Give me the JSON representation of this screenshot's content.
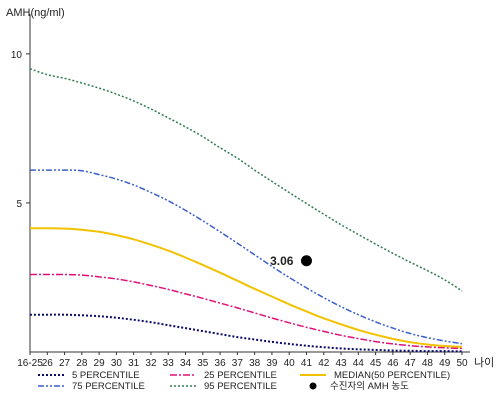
{
  "chart_data": {
    "type": "line",
    "ylabel": "AMH(ng/ml)",
    "xlabel": "나이",
    "ylim": [
      0,
      11
    ],
    "yticks": [
      5,
      10
    ],
    "categories": [
      "16-25",
      "26",
      "27",
      "28",
      "29",
      "30",
      "31",
      "32",
      "33",
      "34",
      "35",
      "36",
      "37",
      "38",
      "39",
      "40",
      "41",
      "42",
      "43",
      "44",
      "45",
      "46",
      "47",
      "48",
      "49",
      "50"
    ],
    "series": [
      {
        "name": "5 PERCENTILE",
        "color": "#0a0a6e",
        "dash": "2,2",
        "width": 2,
        "values": [
          1.25,
          1.25,
          1.25,
          1.23,
          1.2,
          1.15,
          1.08,
          1.0,
          0.9,
          0.8,
          0.7,
          0.6,
          0.5,
          0.42,
          0.34,
          0.27,
          0.21,
          0.16,
          0.12,
          0.09,
          0.07,
          0.05,
          0.04,
          0.03,
          0.03,
          0.02
        ]
      },
      {
        "name": "25 PERCENTILE",
        "color": "#e0107a",
        "dash": "7,2,2,2",
        "width": 1.5,
        "values": [
          2.6,
          2.6,
          2.6,
          2.58,
          2.52,
          2.45,
          2.35,
          2.23,
          2.1,
          1.95,
          1.8,
          1.64,
          1.48,
          1.31,
          1.14,
          0.98,
          0.83,
          0.69,
          0.56,
          0.45,
          0.35,
          0.27,
          0.21,
          0.17,
          0.14,
          0.12
        ]
      },
      {
        "name": "MEDIAN(50 PERCENTILE)",
        "color": "#f2c200",
        "dash": "",
        "width": 2,
        "values": [
          4.15,
          4.15,
          4.14,
          4.1,
          4.03,
          3.92,
          3.78,
          3.6,
          3.4,
          3.17,
          2.92,
          2.66,
          2.39,
          2.12,
          1.86,
          1.6,
          1.36,
          1.13,
          0.93,
          0.74,
          0.58,
          0.44,
          0.33,
          0.25,
          0.2,
          0.17
        ]
      },
      {
        "name": "75 PERCENTILE",
        "color": "#3a5fcd",
        "dash": "6,2,2,2,2,2",
        "width": 1.5,
        "values": [
          6.1,
          6.1,
          6.1,
          6.08,
          5.95,
          5.8,
          5.6,
          5.35,
          5.07,
          4.75,
          4.4,
          4.03,
          3.65,
          3.26,
          2.87,
          2.5,
          2.15,
          1.82,
          1.52,
          1.25,
          1.01,
          0.8,
          0.62,
          0.48,
          0.37,
          0.28
        ]
      },
      {
        "name": "95 PERCENTILE",
        "color": "#2e7d4f",
        "dash": "2,2",
        "width": 1.5,
        "values": [
          9.5,
          9.3,
          9.18,
          9.02,
          8.85,
          8.65,
          8.42,
          8.15,
          7.85,
          7.55,
          7.22,
          6.85,
          6.5,
          6.1,
          5.72,
          5.35,
          4.98,
          4.62,
          4.27,
          3.94,
          3.62,
          3.31,
          3.01,
          2.73,
          2.42,
          2.05
        ]
      }
    ],
    "point": {
      "name": "수진자의 AMH 농도",
      "x": "41",
      "y": 3.06,
      "label": "3.06",
      "color": "#000000"
    },
    "legend_position": "bottom"
  }
}
